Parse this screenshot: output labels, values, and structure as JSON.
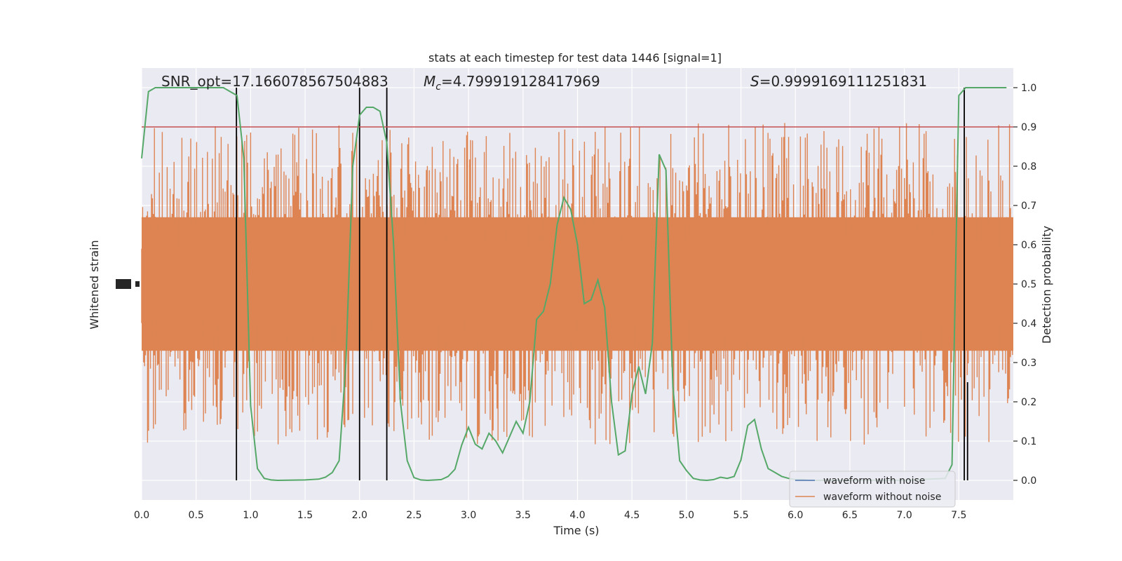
{
  "chart_data": {
    "type": "line",
    "title": "stats at each timestep for test data 1446 [signal=1]",
    "xlabel": "Time (s)",
    "ylabel_left": "Whitened strain",
    "ylabel_right": "Detection probability",
    "xlim": [
      0.0,
      8.0
    ],
    "ylim_right": [
      -0.05,
      1.05
    ],
    "x_ticks": [
      "0.0",
      "0.5",
      "1.0",
      "1.5",
      "2.0",
      "2.5",
      "3.0",
      "3.5",
      "4.0",
      "4.5",
      "5.0",
      "5.5",
      "6.0",
      "6.5",
      "7.0",
      "7.5"
    ],
    "y_ticks_right": [
      "0.0",
      "0.1",
      "0.2",
      "0.3",
      "0.4",
      "0.5",
      "0.6",
      "0.7",
      "0.8",
      "0.9",
      "1.0"
    ],
    "grid": true,
    "annotations": {
      "snr": "SNR_opt=17.166078567504883",
      "mc_symbol": "M",
      "mc_sub": "c",
      "mc_value": "=4.799919128417969",
      "s_symbol": "S",
      "s_value": "=0.9999169111251831"
    },
    "threshold": 0.9,
    "event_lines_x": [
      0.87,
      2.0,
      2.25,
      7.55
    ],
    "noise_band": {
      "center": 0.5,
      "typical_low": 0.3,
      "typical_high": 0.7,
      "peak_high": 1.0,
      "peak_low": 0.08
    },
    "series": [
      {
        "name": "waveform with noise",
        "color": "#4c72b0"
      },
      {
        "name": "waveform without noise",
        "color": "#dd8452"
      }
    ],
    "detection_probability": {
      "color": "#55a868",
      "x": [
        0.0,
        0.0625,
        0.125,
        0.25,
        0.5,
        0.75,
        0.8125,
        0.875,
        0.9375,
        1.0,
        1.0625,
        1.125,
        1.1875,
        1.25,
        1.5,
        1.625,
        1.6875,
        1.75,
        1.8125,
        1.875,
        1.9375,
        2.0,
        2.0625,
        2.125,
        2.1875,
        2.25,
        2.3125,
        2.375,
        2.4375,
        2.5,
        2.5625,
        2.625,
        2.75,
        2.8125,
        2.875,
        2.9375,
        3.0,
        3.0625,
        3.125,
        3.1875,
        3.25,
        3.3125,
        3.375,
        3.4375,
        3.5,
        3.5625,
        3.625,
        3.6875,
        3.75,
        3.8125,
        3.875,
        3.9375,
        4.0,
        4.0625,
        4.125,
        4.1875,
        4.25,
        4.3125,
        4.375,
        4.4375,
        4.5,
        4.5625,
        4.625,
        4.6875,
        4.75,
        4.8125,
        4.875,
        4.9375,
        5.0,
        5.0625,
        5.125,
        5.1875,
        5.25,
        5.3125,
        5.375,
        5.4375,
        5.5,
        5.5625,
        5.625,
        5.6875,
        5.75,
        5.8125,
        5.875,
        5.9375,
        6.0,
        6.0625,
        6.125,
        6.25,
        6.5,
        7.0,
        7.375,
        7.4375,
        7.5,
        7.5625,
        7.625,
        7.6875,
        7.75,
        7.875,
        7.9375
      ],
      "y": [
        0.82,
        0.99,
        1.0,
        1.0,
        1.0,
        1.0,
        0.99,
        0.98,
        0.82,
        0.19,
        0.03,
        0.005,
        0.001,
        0.0,
        0.001,
        0.003,
        0.008,
        0.02,
        0.05,
        0.3,
        0.8,
        0.93,
        0.95,
        0.95,
        0.94,
        0.86,
        0.6,
        0.2,
        0.05,
        0.007,
        0.001,
        0.0,
        0.002,
        0.01,
        0.028,
        0.09,
        0.135,
        0.092,
        0.08,
        0.12,
        0.1,
        0.07,
        0.11,
        0.15,
        0.12,
        0.2,
        0.41,
        0.43,
        0.5,
        0.65,
        0.72,
        0.69,
        0.6,
        0.45,
        0.46,
        0.51,
        0.44,
        0.2,
        0.065,
        0.075,
        0.22,
        0.29,
        0.22,
        0.35,
        0.83,
        0.79,
        0.24,
        0.05,
        0.025,
        0.005,
        0.001,
        0.0,
        0.002,
        0.008,
        0.005,
        0.01,
        0.052,
        0.14,
        0.155,
        0.08,
        0.03,
        0.02,
        0.01,
        0.005,
        0.002,
        0.002,
        0.0,
        0.0,
        0.0,
        0.0,
        0.005,
        0.04,
        0.98,
        1.0,
        1.0,
        1.0,
        1.0,
        1.0,
        1.0
      ]
    }
  }
}
